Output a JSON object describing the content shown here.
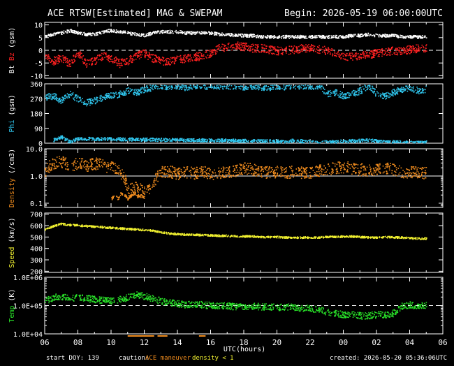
{
  "header": {
    "title": "ACE RTSW[Estimated] MAG & SWEPAM",
    "begin": "Begin: 2026-05-19 06:00:00UTC"
  },
  "footer": {
    "start_doy": "start DOY: 139",
    "caution_label": "caution:",
    "maneuver_label": "ACE maneuver",
    "density_note": "density < 1",
    "created": "created: 2026-05-20 05:36:06UTC"
  },
  "colors": {
    "background": "#000000",
    "axes": "#ffffff",
    "bt": "#ffffff",
    "bz": "#ff2020",
    "phi": "#30c8f0",
    "density": "#f08c1e",
    "speed": "#f0f030",
    "temp": "#28e028",
    "maneuver": "#f08c1e",
    "density_flag": "#f0f030"
  },
  "chart_data": [
    {
      "id": "mag",
      "type": "scatter",
      "ylabel_parts": [
        {
          "text": "Bt",
          "color": "#ffffff"
        },
        {
          "text": "Bz",
          "color": "#ff2020"
        },
        {
          "text": "(gsm)",
          "color": "#ffffff"
        }
      ],
      "ylim": [
        -11,
        11
      ],
      "yticks": [
        {
          "v": 10,
          "label": "10"
        },
        {
          "v": 5,
          "label": "5"
        },
        {
          "v": 0,
          "label": "0"
        },
        {
          "v": -5,
          "label": "-5"
        },
        {
          "v": -10,
          "label": "-10"
        }
      ],
      "refline": 0,
      "refline_style": "dashed",
      "series": [
        {
          "key": "bt",
          "color": "#ffffff",
          "noise": 0.6,
          "x": [
            0,
            0.5,
            1,
            1.5,
            2,
            2.5,
            3,
            3.5,
            4,
            4.5,
            5,
            5.5,
            6,
            6.5,
            7,
            7.5,
            8,
            8.5,
            9,
            9.5,
            10,
            10.5,
            11,
            11.5,
            12,
            12.5,
            13,
            13.5,
            14,
            14.5,
            15,
            15.5,
            16,
            16.5,
            17,
            17.5,
            18,
            18.5,
            19,
            19.5,
            20,
            20.5,
            21,
            21.5,
            22,
            22.5,
            23
          ],
          "y": [
            6,
            6.5,
            7,
            8,
            7,
            6.5,
            6.5,
            7.5,
            8,
            7.5,
            7,
            6.5,
            6,
            7,
            7.5,
            7.5,
            7.5,
            7,
            7,
            7,
            7,
            6.5,
            6.5,
            6,
            6,
            6,
            5.5,
            5.5,
            5.5,
            5.5,
            5.5,
            5.5,
            5.5,
            5.5,
            5.5,
            5.5,
            5.5,
            6,
            6,
            6.5,
            6,
            6,
            6,
            5.5,
            5.5,
            5.5,
            5.5
          ]
        },
        {
          "key": "bz",
          "color": "#ff2020",
          "noise": 1.6,
          "x": [
            0,
            0.5,
            1,
            1.5,
            2,
            2.5,
            3,
            3.5,
            4,
            4.5,
            5,
            5.5,
            6,
            6.5,
            7,
            7.5,
            8,
            8.5,
            9,
            9.5,
            10,
            10.5,
            11,
            11.5,
            12,
            12.5,
            13,
            13.5,
            14,
            14.5,
            15,
            15.5,
            16,
            16.5,
            17,
            17.5,
            18,
            18.5,
            19,
            19.5,
            20,
            20.5,
            21,
            21.5,
            22,
            22.5,
            23
          ],
          "y": [
            -2,
            -4,
            -3,
            -5,
            -1,
            -5,
            -4,
            -2,
            -3,
            -5,
            -4,
            -2,
            -1,
            -3,
            -4,
            -4,
            -3.5,
            -3,
            -2.5,
            -2,
            -1,
            1,
            1.5,
            2,
            1.5,
            1,
            1,
            0.5,
            0,
            0,
            0.5,
            1,
            1,
            0.5,
            0,
            -1,
            -2,
            -2.5,
            -2,
            -1.5,
            -1,
            -0.5,
            0,
            0,
            0.5,
            1,
            1
          ]
        }
      ]
    },
    {
      "id": "phi",
      "type": "scatter",
      "ylabel_parts": [
        {
          "text": "Phi",
          "color": "#30c8f0"
        },
        {
          "text": "(gsm)",
          "color": "#ffffff"
        }
      ],
      "ylim": [
        0,
        360
      ],
      "yticks": [
        {
          "v": 360,
          "label": "360"
        },
        {
          "v": 270,
          "label": "270"
        },
        {
          "v": 180,
          "label": "180"
        },
        {
          "v": 90,
          "label": "90"
        },
        {
          "v": 0,
          "label": "0"
        }
      ],
      "series": [
        {
          "key": "phi",
          "color": "#30c8f0",
          "noise": 20,
          "x": [
            0,
            0.5,
            1,
            1.5,
            2,
            2.5,
            3,
            3.5,
            4,
            4.5,
            5,
            5.5,
            6,
            6.5,
            7,
            7.5,
            8,
            8.5,
            9,
            9.5,
            10,
            10.5,
            11,
            11.5,
            12,
            12.5,
            13,
            13.5,
            14,
            14.5,
            15,
            15.5,
            16,
            16.5,
            17,
            17.5,
            18,
            18.5,
            19,
            19.5,
            20,
            20.5,
            21,
            21.5,
            22,
            22.5,
            23
          ],
          "y": [
            280,
            290,
            260,
            300,
            270,
            250,
            260,
            280,
            290,
            300,
            320,
            310,
            330,
            340,
            350,
            345,
            350,
            340,
            355,
            350,
            350,
            345,
            350,
            350,
            345,
            350,
            345,
            340,
            350,
            345,
            350,
            350,
            345,
            350,
            300,
            310,
            290,
            300,
            320,
            350,
            300,
            290,
            310,
            330,
            340,
            320,
            330
          ]
        },
        {
          "key": "phi_low",
          "color": "#30c8f0",
          "noise": 10,
          "x": [
            0.5,
            1,
            1.5,
            2,
            14,
            14.5,
            15,
            15.5,
            16,
            16.5,
            17,
            19.5,
            20,
            20.5,
            21,
            22.5,
            23
          ],
          "y": [
            20,
            40,
            10,
            30,
            15,
            10,
            20,
            15,
            10,
            5,
            10,
            20,
            15,
            10,
            10,
            5,
            10
          ]
        }
      ]
    },
    {
      "id": "density",
      "type": "scatter",
      "ylabel_parts": [
        {
          "text": "Density",
          "color": "#f08c1e"
        },
        {
          "text": "(/cm3)",
          "color": "#ffffff"
        }
      ],
      "yscale": "log",
      "ylim": [
        0.07,
        10
      ],
      "yticks": [
        {
          "v": 10,
          "label": "10.0"
        },
        {
          "v": 1,
          "label": "1.0"
        },
        {
          "v": 0.1,
          "label": "0.1"
        }
      ],
      "refline": 1,
      "refline_style": "solid",
      "series": [
        {
          "key": "density",
          "color": "#f08c1e",
          "noise": 0.22,
          "x": [
            0,
            0.5,
            1,
            1.5,
            2,
            2.5,
            3,
            3.5,
            4,
            4.5,
            5,
            5.5,
            6,
            6.5,
            7,
            7.5,
            8,
            8.5,
            9,
            9.5,
            10,
            10.5,
            11,
            11.5,
            12,
            12.5,
            13,
            13.5,
            14,
            14.5,
            15,
            15.5,
            16,
            16.5,
            17,
            17.5,
            18,
            18.5,
            19,
            19.5,
            20,
            20.5,
            21,
            21.5,
            22,
            22.5,
            23
          ],
          "y": [
            1.5,
            3,
            3.5,
            2.5,
            3,
            2.5,
            3,
            2.5,
            2.2,
            1.5,
            0.3,
            0.4,
            0.25,
            0.5,
            1.5,
            1.5,
            1.3,
            1.4,
            1.3,
            1.5,
            1.2,
            1.3,
            1.5,
            1.6,
            2,
            1.8,
            1.5,
            1.4,
            1.5,
            1.4,
            1.5,
            1.4,
            1.4,
            1.6,
            1.8,
            2,
            2.2,
            2,
            1.8,
            1.7,
            1.8,
            2,
            1.8,
            1.5,
            1.4,
            1.5,
            1.3
          ]
        },
        {
          "key": "density_low",
          "color": "#f08c1e",
          "noise": 0.05,
          "x": [
            4,
            4.2,
            4.4,
            4.6,
            4.8,
            5.0,
            5.2,
            5.4,
            5.6,
            5.8,
            6.0
          ],
          "y": [
            0.15,
            0.2,
            0.15,
            0.25,
            0.2,
            0.15,
            0.2,
            0.25,
            0.18,
            0.2,
            0.15
          ]
        }
      ]
    },
    {
      "id": "speed",
      "type": "scatter",
      "ylabel_parts": [
        {
          "text": "Speed",
          "color": "#f0f030"
        },
        {
          "text": "(km/s)",
          "color": "#ffffff"
        }
      ],
      "ylim": [
        190,
        710
      ],
      "yticks": [
        {
          "v": 700,
          "label": "700"
        },
        {
          "v": 600,
          "label": "600"
        },
        {
          "v": 500,
          "label": "500"
        },
        {
          "v": 400,
          "label": "400"
        },
        {
          "v": 300,
          "label": "300"
        },
        {
          "v": 200,
          "label": "200"
        }
      ],
      "series": [
        {
          "key": "speed",
          "color": "#f0f030",
          "noise": 8,
          "x": [
            0,
            0.5,
            1,
            1.5,
            2,
            2.5,
            3,
            3.5,
            4,
            4.5,
            5,
            5.5,
            6,
            6.5,
            7,
            7.5,
            8,
            8.5,
            9,
            9.5,
            10,
            10.5,
            11,
            11.5,
            12,
            12.5,
            13,
            13.5,
            14,
            14.5,
            15,
            15.5,
            16,
            16.5,
            17,
            17.5,
            18,
            18.5,
            19,
            19.5,
            20,
            20.5,
            21,
            21.5,
            22,
            22.5,
            23
          ],
          "y": [
            570,
            600,
            620,
            610,
            605,
            600,
            595,
            590,
            585,
            580,
            575,
            570,
            565,
            560,
            545,
            535,
            530,
            525,
            525,
            520,
            520,
            515,
            515,
            510,
            510,
            510,
            505,
            505,
            505,
            500,
            500,
            500,
            500,
            500,
            505,
            505,
            510,
            510,
            505,
            500,
            500,
            505,
            500,
            500,
            495,
            490,
            490
          ]
        }
      ]
    },
    {
      "id": "temp",
      "type": "scatter",
      "ylabel_parts": [
        {
          "text": "Temp",
          "color": "#28e028"
        },
        {
          "text": "(K)",
          "color": "#ffffff"
        }
      ],
      "yscale": "log",
      "ylim": [
        10000,
        1000000
      ],
      "yticks": [
        {
          "v": 1000000,
          "label": "1.0E+06"
        },
        {
          "v": 100000,
          "label": "1.0E+05"
        },
        {
          "v": 10000,
          "label": "1.0E+04"
        }
      ],
      "refline": 100000,
      "refline_style": "dashed",
      "series": [
        {
          "key": "temp",
          "color": "#28e028",
          "noise": 0.12,
          "x": [
            0,
            0.5,
            1,
            1.5,
            2,
            2.5,
            3,
            3.5,
            4,
            4.5,
            5,
            5.5,
            6,
            6.5,
            7,
            7.5,
            8,
            8.5,
            9,
            9.5,
            10,
            10.5,
            11,
            11.5,
            12,
            12.5,
            13,
            13.5,
            14,
            14.5,
            15,
            15.5,
            16,
            16.5,
            17,
            17.5,
            18,
            18.5,
            19,
            19.5,
            20,
            20.5,
            21,
            21.5,
            22,
            22.5,
            23
          ],
          "y": [
            150000,
            200000,
            220000,
            180000,
            200000,
            190000,
            170000,
            160000,
            150000,
            170000,
            200000,
            250000,
            220000,
            180000,
            150000,
            130000,
            120000,
            110000,
            120000,
            110000,
            105000,
            100000,
            100000,
            95000,
            100000,
            100000,
            95000,
            95000,
            90000,
            95000,
            90000,
            85000,
            80000,
            75000,
            60000,
            55000,
            50000,
            50000,
            45000,
            45000,
            50000,
            50000,
            55000,
            100000,
            110000,
            100000,
            105000
          ]
        }
      ]
    }
  ],
  "x_axis": {
    "range": [
      0,
      24
    ],
    "tick_labels": [
      "06",
      "08",
      "10",
      "12",
      "14",
      "16",
      "18",
      "20",
      "22",
      "00",
      "02",
      "04",
      "06"
    ],
    "xlabel": "UTC(hours)"
  },
  "maneuver_segments": [
    [
      5.0,
      6.6
    ],
    [
      6.8,
      7.4
    ],
    [
      9.3,
      9.7
    ]
  ]
}
